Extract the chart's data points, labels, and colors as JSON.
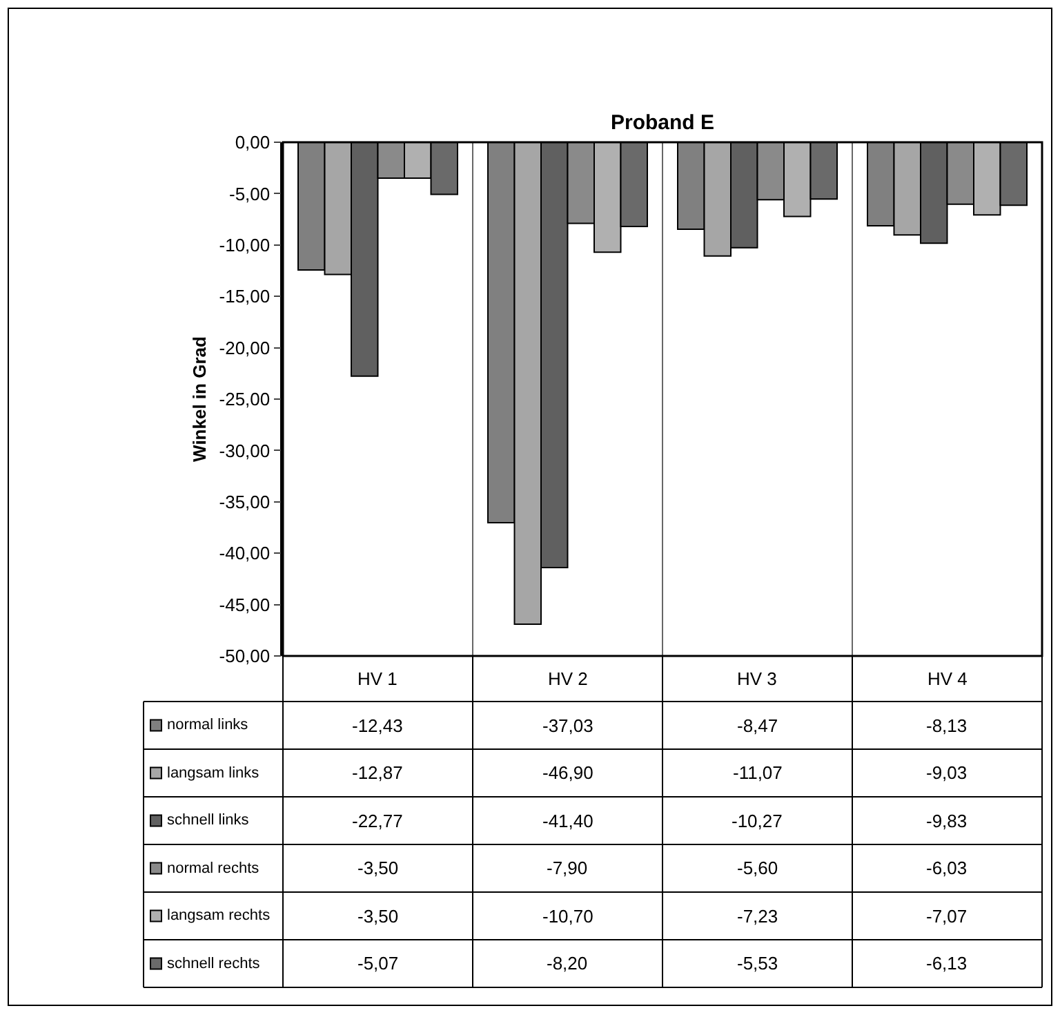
{
  "chart_data": {
    "type": "bar",
    "title": "Proband E",
    "ylabel": "Winkel in Grad",
    "categories": [
      "HV 1",
      "HV 2",
      "HV 3",
      "HV 4"
    ],
    "series": [
      {
        "name": "normal links",
        "color": "#808080",
        "values": [
          -12.43,
          -37.03,
          -8.47,
          -8.13
        ],
        "value_labels": [
          "-12,43",
          "-37,03",
          "-8,47",
          "-8,13"
        ]
      },
      {
        "name": "langsam links",
        "color": "#a6a6a6",
        "values": [
          -12.87,
          -46.9,
          -11.07,
          -9.03
        ],
        "value_labels": [
          "-12,87",
          "-46,90",
          "-11,07",
          "-9,03"
        ]
      },
      {
        "name": "schnell links",
        "color": "#606060",
        "values": [
          -22.77,
          -41.4,
          -10.27,
          -9.83
        ],
        "value_labels": [
          "-22,77",
          "-41,40",
          "-10,27",
          "-9,83"
        ]
      },
      {
        "name": "normal rechts",
        "color": "#8a8a8a",
        "values": [
          -3.5,
          -7.9,
          -5.6,
          -6.03
        ],
        "value_labels": [
          "-3,50",
          "-7,90",
          "-5,60",
          "-6,03"
        ]
      },
      {
        "name": "langsam rechts",
        "color": "#b0b0b0",
        "values": [
          -3.5,
          -10.7,
          -7.23,
          -7.07
        ],
        "value_labels": [
          "-3,50",
          "-10,70",
          "-7,23",
          "-7,07"
        ]
      },
      {
        "name": "schnell rechts",
        "color": "#6a6a6a",
        "values": [
          -5.07,
          -8.2,
          -5.53,
          -6.13
        ],
        "value_labels": [
          "-5,07",
          "-8,20",
          "-5,53",
          "-6,13"
        ]
      }
    ],
    "ylim": [
      -50,
      0
    ],
    "yticks": [
      {
        "value": 0,
        "label": "0,00"
      },
      {
        "value": -5,
        "label": "-5,00"
      },
      {
        "value": -10,
        "label": "-10,00"
      },
      {
        "value": -15,
        "label": "-15,00"
      },
      {
        "value": -20,
        "label": "-20,00"
      },
      {
        "value": -25,
        "label": "-25,00"
      },
      {
        "value": -30,
        "label": "-30,00"
      },
      {
        "value": -35,
        "label": "-35,00"
      },
      {
        "value": -40,
        "label": "-40,00"
      },
      {
        "value": -45,
        "label": "-45,00"
      },
      {
        "value": -50,
        "label": "-50,00"
      }
    ],
    "legend": "bottom",
    "grid": false
  }
}
